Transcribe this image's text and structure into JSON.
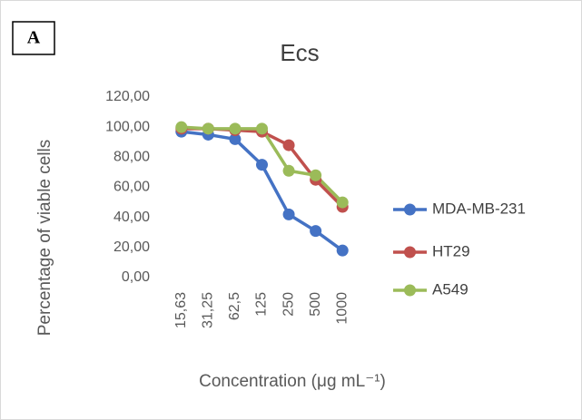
{
  "chart_data": {
    "type": "line",
    "panel_label": "A",
    "title": "Ecs",
    "ylabel": "Percentage of viable cells",
    "xlabel": "Concentration (μg mL⁻¹)",
    "categories": [
      "15,63",
      "31,25",
      "62,5",
      "125",
      "250",
      "500",
      "1000"
    ],
    "series": [
      {
        "name": "MDA-MB-231",
        "color": "#4472c4",
        "values": [
          97,
          95,
          92,
          75,
          42,
          31,
          18
        ]
      },
      {
        "name": "HT29",
        "color": "#c0504d",
        "values": [
          99,
          99,
          98,
          97,
          88,
          65,
          47
        ]
      },
      {
        "name": "A549",
        "color": "#9bbb59",
        "values": [
          100,
          99,
          99,
          99,
          71,
          68,
          50
        ]
      }
    ],
    "ylim": [
      0,
      120
    ],
    "yticks": [
      {
        "value": 0,
        "label": "0,00"
      },
      {
        "value": 20,
        "label": "20,00"
      },
      {
        "value": 40,
        "label": "40,00"
      },
      {
        "value": 60,
        "label": "60,00"
      },
      {
        "value": 80,
        "label": "80,00"
      },
      {
        "value": 100,
        "label": "100,00"
      },
      {
        "value": 120,
        "label": "120,00"
      }
    ],
    "grid": false,
    "legend": "right"
  }
}
